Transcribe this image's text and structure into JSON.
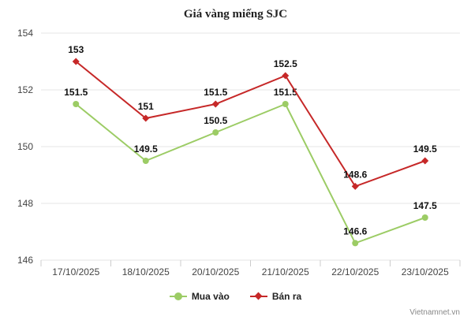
{
  "chart_data": {
    "type": "line",
    "title": "Giá vàng miếng SJC",
    "categories": [
      "17/10/2025",
      "18/10/2025",
      "20/10/2025",
      "21/10/2025",
      "22/10/2025",
      "23/10/2025"
    ],
    "series": [
      {
        "name": "Mua vào",
        "values": [
          151.5,
          149.5,
          150.5,
          151.5,
          146.6,
          147.5
        ],
        "color": "#9ccc65",
        "marker": "circle"
      },
      {
        "name": "Bán ra",
        "values": [
          153,
          151,
          151.5,
          152.5,
          148.6,
          149.5
        ],
        "color": "#c62828",
        "marker": "diamond"
      }
    ],
    "data_labels": {
      "Mua vào": [
        "151.5",
        "149.5",
        "150.5",
        "151.5",
        "146.6",
        "147.5"
      ],
      "Bán ra": [
        "153",
        "151",
        "151.5",
        "152.5",
        "148.6",
        "149.5"
      ]
    },
    "ylim": [
      146,
      154
    ],
    "yticks": [
      "146",
      "148",
      "150",
      "152",
      "154"
    ],
    "grid": true,
    "legend_position": "bottom"
  },
  "legend": {
    "buy_label": "Mua vào",
    "sell_label": "Bán ra"
  },
  "credit": "Vietnamnet.vn"
}
